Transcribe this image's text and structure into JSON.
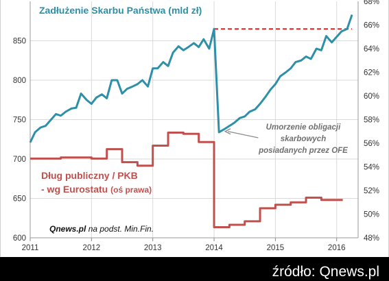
{
  "title": "Zadłużenie Skarbu Państwa (mld zł)",
  "annotation": [
    "Umorzenie obligacji",
    "skarbowych",
    "posiadanych przez OFE"
  ],
  "debt_label": {
    "line1": "Dług publiczny / PKB",
    "line2": "- wg Eurostatu",
    "line2_small": "(oś prawa)"
  },
  "source_note": {
    "brand": "Qnews.pl",
    "rest": "na podst. Min.Fin."
  },
  "footer": "źródło: Qnews.pl",
  "colors": {
    "treasury": "#2e8fa8",
    "eurostat": "#c0504d",
    "reference": "#e02020",
    "background": "#000000",
    "plot": "#ffffff"
  },
  "chart_data": {
    "type": "line",
    "x_ticks": [
      "2011",
      "2012",
      "2013",
      "2014",
      "2015",
      "2016"
    ],
    "xlim": [
      2011,
      2016.35
    ],
    "y_left": {
      "ylim": [
        600,
        900
      ],
      "ticks": [
        "600",
        "650",
        "700",
        "750",
        "800",
        "850"
      ]
    },
    "y_right": {
      "ylim": [
        48,
        68
      ],
      "ticks": [
        "48%",
        "50%",
        "52%",
        "54%",
        "56%",
        "58%",
        "60%",
        "62%",
        "64%",
        "66%",
        "68%"
      ]
    },
    "grid": true,
    "series": [
      {
        "axis": "left",
        "points": [
          [
            2011.0,
            721
          ],
          [
            2011.08,
            734
          ],
          [
            2011.17,
            740
          ],
          [
            2011.25,
            742
          ],
          [
            2011.33,
            749
          ],
          [
            2011.42,
            757
          ],
          [
            2011.5,
            755
          ],
          [
            2011.58,
            760
          ],
          [
            2011.67,
            764
          ],
          [
            2011.75,
            765
          ],
          [
            2011.83,
            783
          ],
          [
            2011.92,
            775
          ],
          [
            2012.0,
            770
          ],
          [
            2012.08,
            778
          ],
          [
            2012.17,
            782
          ],
          [
            2012.25,
            777
          ],
          [
            2012.33,
            800
          ],
          [
            2012.42,
            800
          ],
          [
            2012.5,
            783
          ],
          [
            2012.58,
            789
          ],
          [
            2012.67,
            792
          ],
          [
            2012.75,
            795
          ],
          [
            2012.83,
            800
          ],
          [
            2012.92,
            792
          ],
          [
            2013.0,
            815
          ],
          [
            2013.08,
            815
          ],
          [
            2013.17,
            823
          ],
          [
            2013.25,
            818
          ],
          [
            2013.33,
            835
          ],
          [
            2013.42,
            843
          ],
          [
            2013.5,
            838
          ],
          [
            2013.58,
            842
          ],
          [
            2013.67,
            847
          ],
          [
            2013.75,
            842
          ],
          [
            2013.83,
            852
          ],
          [
            2013.92,
            840
          ],
          [
            2014.0,
            865
          ],
          [
            2014.08,
            734
          ],
          [
            2014.17,
            738
          ],
          [
            2014.25,
            742
          ],
          [
            2014.33,
            746
          ],
          [
            2014.42,
            752
          ],
          [
            2014.5,
            754
          ],
          [
            2014.58,
            760
          ],
          [
            2014.67,
            763
          ],
          [
            2014.75,
            770
          ],
          [
            2014.83,
            778
          ],
          [
            2014.92,
            788
          ],
          [
            2015.0,
            795
          ],
          [
            2015.08,
            805
          ],
          [
            2015.17,
            810
          ],
          [
            2015.25,
            815
          ],
          [
            2015.33,
            823
          ],
          [
            2015.42,
            825
          ],
          [
            2015.5,
            830
          ],
          [
            2015.58,
            827
          ],
          [
            2015.67,
            840
          ],
          [
            2015.75,
            838
          ],
          [
            2015.83,
            856
          ],
          [
            2015.92,
            848
          ],
          [
            2016.0,
            855
          ],
          [
            2016.08,
            862
          ],
          [
            2016.17,
            865
          ],
          [
            2016.25,
            883
          ]
        ]
      },
      {
        "axis": "right",
        "points": [
          [
            2011.0,
            54.7
          ],
          [
            2011.25,
            54.7
          ],
          [
            2011.5,
            54.8
          ],
          [
            2011.75,
            54.8
          ],
          [
            2012.0,
            54.7
          ],
          [
            2012.25,
            55.5
          ],
          [
            2012.5,
            54.4
          ],
          [
            2012.75,
            54.1
          ],
          [
            2013.0,
            55.8
          ],
          [
            2013.25,
            56.9
          ],
          [
            2013.5,
            56.8
          ],
          [
            2013.75,
            56.1
          ],
          [
            2014.0,
            48.9
          ],
          [
            2014.25,
            49.1
          ],
          [
            2014.5,
            49.4
          ],
          [
            2014.75,
            50.5
          ],
          [
            2015.0,
            50.8
          ],
          [
            2015.25,
            51.0
          ],
          [
            2015.5,
            51.4
          ],
          [
            2015.75,
            51.2
          ],
          [
            2016.0,
            51.2
          ]
        ]
      }
    ],
    "reference_line": {
      "axis": "left",
      "value": 865,
      "x_from": 2014.0,
      "x_to": 2016.25
    },
    "annotation_arrow": {
      "from": [
        2014.72,
        727
      ],
      "to": [
        2014.18,
        735
      ]
    }
  }
}
